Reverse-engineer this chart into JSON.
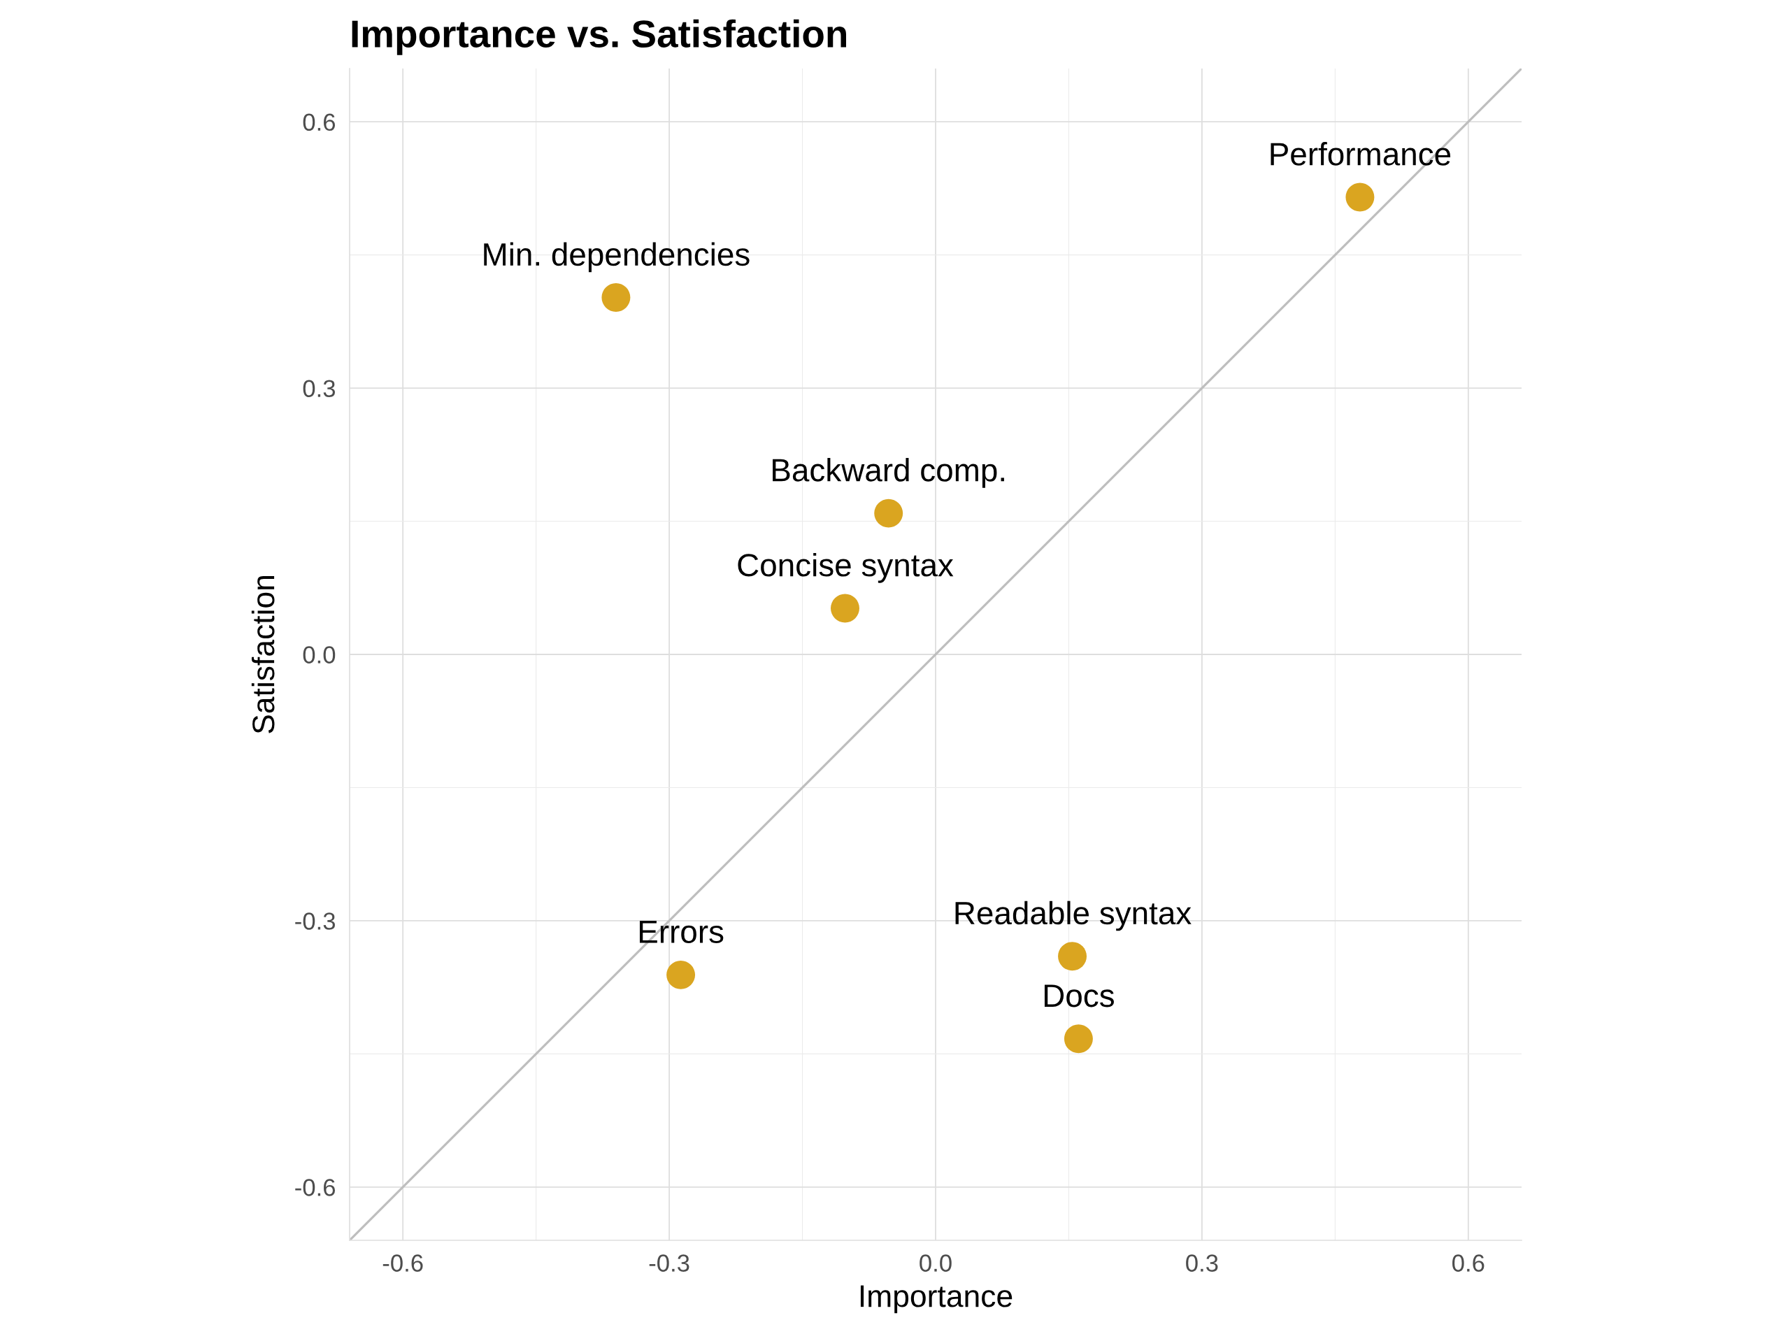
{
  "chart_data": {
    "type": "scatter",
    "title": "Importance vs. Satisfaction",
    "xlabel": "Importance",
    "ylabel": "Satisfaction",
    "series": [
      {
        "color": "#daa520",
        "marker": "circle",
        "x": [
          0.478,
          -0.36,
          -0.053,
          -0.102,
          -0.287,
          0.154,
          0.161
        ],
        "values": [
          0.515,
          0.402,
          0.159,
          0.052,
          -0.361,
          -0.34,
          -0.433
        ]
      },
      {
        "type": "line",
        "color": "#bebebe",
        "line_style": "solid",
        "x": [
          -0.66,
          0.66
        ],
        "values": [
          -0.66,
          0.66
        ]
      }
    ],
    "annotations": [
      {
        "text": "Performance",
        "x": 0.478,
        "y": 0.515
      },
      {
        "text": "Min. dependencies",
        "x": -0.36,
        "y": 0.402
      },
      {
        "text": "Backward comp.",
        "x": -0.053,
        "y": 0.159
      },
      {
        "text": "Concise syntax",
        "x": -0.102,
        "y": 0.052
      },
      {
        "text": "Errors",
        "x": -0.287,
        "y": -0.361
      },
      {
        "text": "Readable syntax",
        "x": 0.154,
        "y": -0.34
      },
      {
        "text": "Docs",
        "x": 0.161,
        "y": -0.433
      }
    ],
    "xlim": [
      -0.66,
      0.66
    ],
    "ylim": [
      -0.66,
      0.66
    ],
    "xticks": [
      -0.6,
      -0.3,
      {
        "value": 0,
        "label": "0.0"
      },
      0.3,
      0.6
    ],
    "yticks": [
      -0.6,
      -0.3,
      {
        "value": 0,
        "label": "0.0"
      },
      0.3,
      0.6
    ],
    "grid": true
  }
}
